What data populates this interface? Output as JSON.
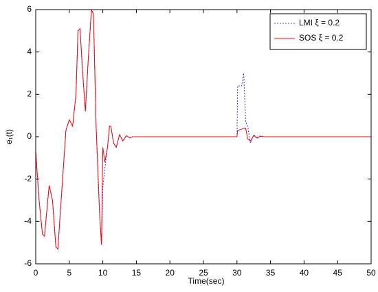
{
  "chart_data": {
    "type": "line",
    "xlabel": "Time(sec)",
    "ylabel": "e₁(t)",
    "x": [
      0,
      0.5,
      1,
      1.3,
      2,
      2.5,
      3,
      3.3,
      4,
      4.5,
      5,
      5.5,
      6,
      6.3,
      6.6,
      7,
      7.4,
      7.8,
      8.3,
      8.6,
      9,
      9.5,
      9.8,
      10,
      10.3,
      10.7,
      11,
      11.2,
      11.6,
      12,
      12.5,
      13,
      13.5,
      14,
      14.5,
      30,
      30.1,
      30.7,
      31,
      31.3,
      31.6,
      32,
      32.5,
      33,
      33.5,
      34,
      35,
      50
    ],
    "series": [
      {
        "name": "LMI  ξ = 0.2",
        "color": "#3333ff",
        "dash": true,
        "values": [
          -0.7,
          -3.0,
          -4.6,
          -4.7,
          -2.3,
          -3.0,
          -5.2,
          -5.3,
          -2.0,
          0.3,
          0.8,
          0.5,
          2.0,
          5.0,
          5.1,
          3.0,
          1.2,
          3.5,
          6.0,
          5.8,
          0.5,
          -3.5,
          -5.1,
          -2.4,
          -1.5,
          -0.5,
          0.5,
          0.5,
          -0.3,
          -0.5,
          0.1,
          -0.2,
          0.05,
          -0.05,
          0,
          0,
          2.4,
          2.4,
          3.0,
          0.7,
          0.5,
          -0.3,
          0.1,
          -0.1,
          0.05,
          0,
          0,
          0
        ]
      },
      {
        "name": "SOS  ξ = 0.2",
        "color": "#ff0000",
        "dash": false,
        "values": [
          -0.7,
          -3.0,
          -4.6,
          -4.7,
          -2.3,
          -3.0,
          -5.2,
          -5.3,
          -2.0,
          0.3,
          0.8,
          0.5,
          2.0,
          5.0,
          5.1,
          3.0,
          1.2,
          3.5,
          6.0,
          5.8,
          0.5,
          -3.5,
          -5.1,
          -0.5,
          -1.2,
          -0.5,
          0.5,
          0.5,
          -0.3,
          -0.5,
          0.1,
          -0.2,
          0.05,
          -0.05,
          0,
          0,
          0.3,
          0.35,
          0.4,
          0.4,
          -0.1,
          -0.2,
          0.05,
          -0.05,
          0.02,
          0,
          0,
          0
        ]
      }
    ],
    "xlim": [
      0,
      50
    ],
    "xticks": [
      0,
      5,
      10,
      15,
      20,
      25,
      30,
      35,
      40,
      45,
      50
    ],
    "ylim": [
      -6,
      6
    ],
    "yticks": [
      -6,
      -4,
      -2,
      0,
      2,
      4,
      6
    ],
    "legend": "upper-right"
  }
}
